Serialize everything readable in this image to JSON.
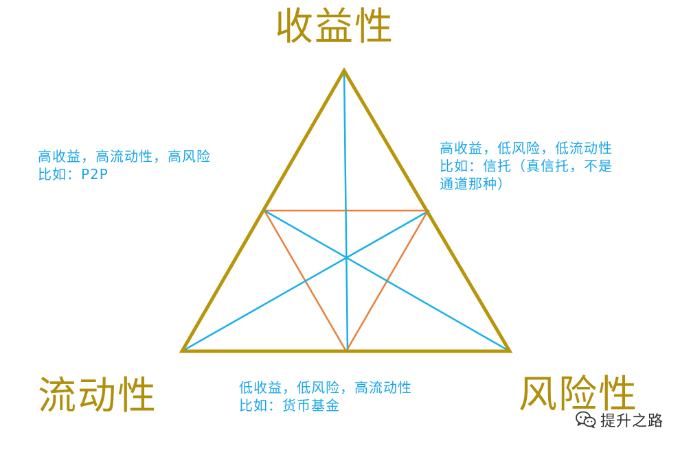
{
  "colors": {
    "label": "#b08f0c",
    "outer_triangle": "#b8960c",
    "inner_triangle": "#e8803a",
    "medians": "#1ab0e8",
    "note_text": "#1aa6e8",
    "watermark": "#333333"
  },
  "corners": {
    "top": "收益性",
    "bottom_left": "流动性",
    "bottom_right": "风险性"
  },
  "notes": {
    "left": {
      "line1": "高收益，高流动性，高风险",
      "line2": "比如：P2P"
    },
    "right": {
      "line1": "高收益，低风险，低流动性",
      "line2": "比如：信托（真信托，不是",
      "line3": "通道那种）"
    },
    "bottom": {
      "line1": "低收益，低风险，高流动性",
      "line2": "比如：货币基金"
    }
  },
  "watermark": {
    "icon": "wechat-icon",
    "text": "提升之路"
  }
}
